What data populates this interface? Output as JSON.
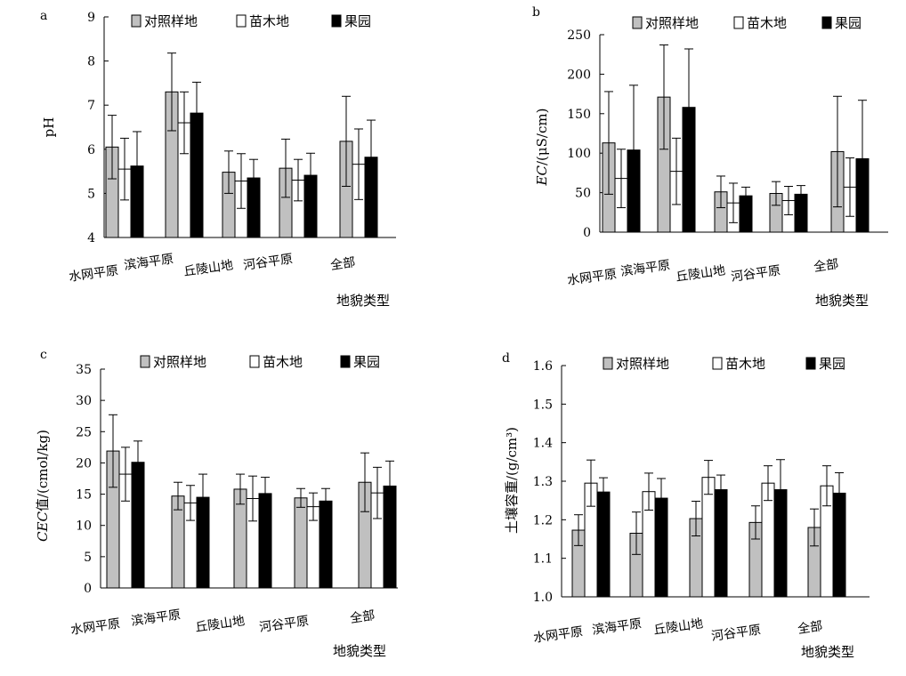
{
  "figure": {
    "group_categories": [
      "水网平原",
      "滨海平原",
      "丘陵山地",
      "河谷平原",
      "全部"
    ],
    "legend": [
      "对照样地",
      "苗木地",
      "果园"
    ],
    "colors": {
      "对照样地": "#c0c0c0",
      "苗木地": "#ffffff",
      "果园": "#000000",
      "outline": "#000000"
    },
    "xlabel": "地貌类型"
  },
  "chart_data": [
    {
      "panel": "a",
      "type": "bar",
      "ylabel": "pH",
      "xlabel": "地貌类型",
      "ylim": [
        4,
        9
      ],
      "yticks": [
        4,
        5,
        6,
        7,
        8,
        9
      ],
      "categories": [
        "水网平原",
        "滨海平原",
        "丘陵山地",
        "河谷平原",
        "全部"
      ],
      "series": [
        {
          "name": "对照样地",
          "values": [
            6.05,
            7.3,
            5.48,
            5.57,
            6.18
          ],
          "errors": [
            0.72,
            0.88,
            0.48,
            0.66,
            1.02
          ]
        },
        {
          "name": "苗木地",
          "values": [
            5.55,
            6.6,
            5.28,
            5.3,
            5.66
          ],
          "errors": [
            0.7,
            0.7,
            0.62,
            0.47,
            0.8
          ]
        },
        {
          "name": "果园",
          "values": [
            5.62,
            6.82,
            5.35,
            5.41,
            5.82
          ],
          "errors": [
            0.78,
            0.7,
            0.42,
            0.5,
            0.84
          ]
        }
      ]
    },
    {
      "panel": "b",
      "type": "bar",
      "ylabel": "EC/(μS/cm)",
      "xlabel": "地貌类型",
      "ylim": [
        0,
        250
      ],
      "yticks": [
        0,
        50,
        100,
        150,
        200,
        250
      ],
      "categories": [
        "水网平原",
        "滨海平原",
        "丘陵山地",
        "河谷平原",
        "全部"
      ],
      "series": [
        {
          "name": "对照样地",
          "values": [
            113,
            171,
            51,
            49,
            102
          ],
          "errors": [
            65,
            66,
            20,
            15,
            70
          ]
        },
        {
          "name": "苗木地",
          "values": [
            68,
            77,
            37,
            40,
            57
          ],
          "errors": [
            37,
            42,
            25,
            18,
            37
          ]
        },
        {
          "name": "果园",
          "values": [
            104,
            158,
            46,
            48,
            93
          ],
          "errors": [
            82,
            74,
            11,
            11,
            74
          ]
        }
      ]
    },
    {
      "panel": "c",
      "type": "bar",
      "ylabel": "CEC值/(cmol/kg)",
      "xlabel": "地貌类型",
      "ylim": [
        0,
        35
      ],
      "yticks": [
        0,
        5,
        10,
        15,
        20,
        25,
        30,
        35
      ],
      "categories": [
        "水网平原",
        "滨海平原",
        "丘陵山地",
        "河谷平原",
        "全部"
      ],
      "series": [
        {
          "name": "对照样地",
          "values": [
            21.9,
            14.7,
            15.8,
            14.4,
            16.9
          ],
          "errors": [
            5.8,
            2.2,
            2.4,
            1.5,
            4.7
          ]
        },
        {
          "name": "苗木地",
          "values": [
            18.2,
            13.6,
            14.3,
            13.0,
            15.2
          ],
          "errors": [
            4.3,
            2.8,
            3.6,
            2.2,
            4.1
          ]
        },
        {
          "name": "果园",
          "values": [
            20.1,
            14.5,
            15.1,
            13.9,
            16.3
          ],
          "errors": [
            3.4,
            3.7,
            2.6,
            2.0,
            4.0
          ]
        }
      ]
    },
    {
      "panel": "d",
      "type": "bar",
      "ylabel": "土壤容重/(g/cm³)",
      "xlabel": "地貌类型",
      "ylim": [
        1.0,
        1.6
      ],
      "yticks": [
        "1.0",
        "1.1",
        "1.2",
        "1.3",
        "1.4",
        "1.5",
        "1.6"
      ],
      "categories": [
        "水网平原",
        "滨海平原",
        "丘陵山地",
        "河谷平原",
        "全部"
      ],
      "series": [
        {
          "name": "对照样地",
          "values": [
            1.173,
            1.165,
            1.203,
            1.193,
            1.18
          ],
          "errors": [
            0.04,
            0.055,
            0.045,
            0.043,
            0.048
          ]
        },
        {
          "name": "苗木地",
          "values": [
            1.295,
            1.273,
            1.31,
            1.295,
            1.288
          ],
          "errors": [
            0.06,
            0.048,
            0.044,
            0.045,
            0.052
          ]
        },
        {
          "name": "果园",
          "values": [
            1.272,
            1.256,
            1.278,
            1.278,
            1.269
          ],
          "errors": [
            0.037,
            0.051,
            0.038,
            0.078,
            0.053
          ]
        }
      ]
    }
  ]
}
